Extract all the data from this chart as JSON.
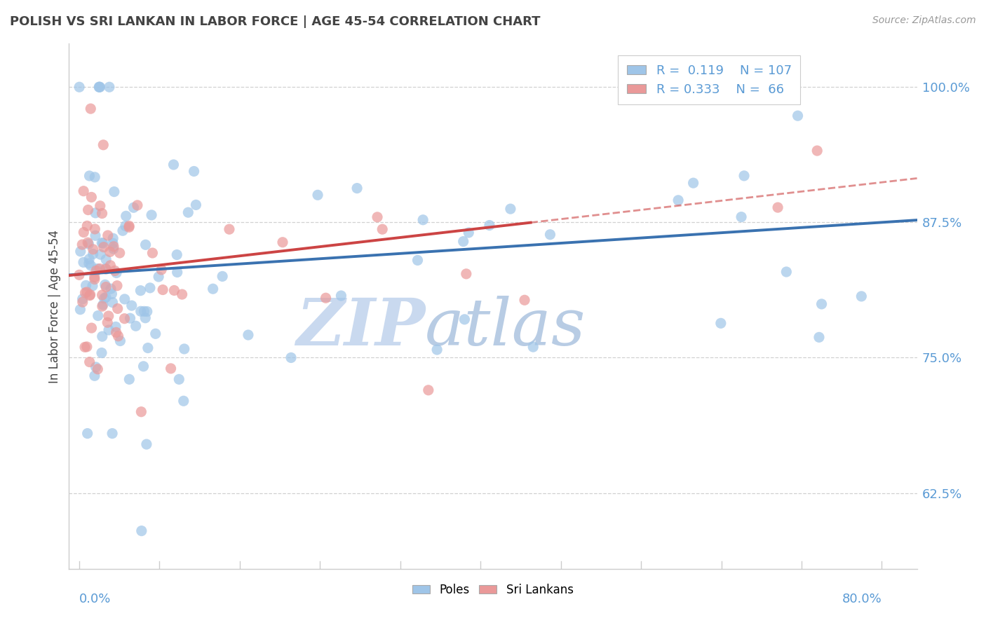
{
  "title": "POLISH VS SRI LANKAN IN LABOR FORCE | AGE 45-54 CORRELATION CHART",
  "source": "Source: ZipAtlas.com",
  "ylabel": "In Labor Force | Age 45-54",
  "right_yticks": [
    0.625,
    0.75,
    0.875,
    1.0
  ],
  "right_yticklabels": [
    "62.5%",
    "75.0%",
    "87.5%",
    "100.0%"
  ],
  "xlim": [
    -0.01,
    0.835
  ],
  "ylim": [
    0.555,
    1.04
  ],
  "legend_R_blue": "0.119",
  "legend_N_blue": "107",
  "legend_R_pink": "0.333",
  "legend_N_pink": "66",
  "blue_scatter_color": "#9fc5e8",
  "pink_scatter_color": "#ea9999",
  "blue_line_color": "#3a72b0",
  "pink_line_color": "#cc4444",
  "title_color": "#434343",
  "source_color": "#999999",
  "grid_color": "#cccccc",
  "label_color": "#5b9bd5",
  "watermark_color_zip": "#c9d9ef",
  "watermark_color_atlas": "#b8cce4"
}
